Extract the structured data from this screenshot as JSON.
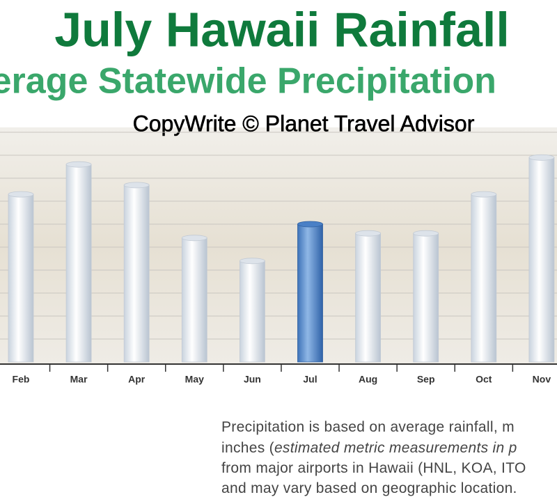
{
  "title": "July Hawaii Rainfall",
  "subtitle": "Average Statewide Precipitation",
  "copyright": "CopyWrite © Planet Travel Advisor",
  "chart_data": {
    "type": "bar",
    "categories": [
      "Feb",
      "Mar",
      "Apr",
      "May",
      "Jun",
      "Jul",
      "Aug",
      "Sep",
      "Oct",
      "Nov"
    ],
    "values": [
      7.3,
      8.6,
      7.7,
      5.4,
      4.4,
      6.0,
      5.6,
      5.6,
      7.3,
      8.9
    ],
    "color": "#e6ecf3",
    "highlight_color": "#5b8fd0",
    "highlight": "Jul",
    "ylim": [
      0,
      10
    ],
    "grid": true
  },
  "note": {
    "line1": "Precipitation is based on average rainfall, m",
    "line2_plain": "inches (",
    "line2_italic": "estimated metric measurements in p",
    "line3": "from major airports in Hawaii (HNL, KOA, ITO",
    "line4": "and may vary based on geographic location."
  }
}
